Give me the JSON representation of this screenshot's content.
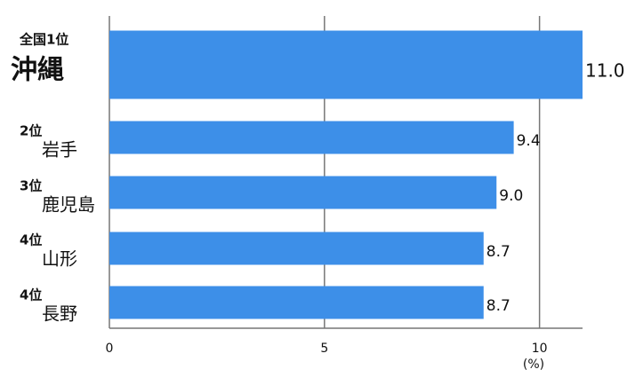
{
  "chart_data": {
    "type": "bar",
    "orientation": "horizontal",
    "ranks": [
      "全国1位",
      "2位",
      "3位",
      "4位",
      "4位"
    ],
    "categories": [
      "沖縄",
      "岩手",
      "鹿児島",
      "山形",
      "長野"
    ],
    "values": [
      11.0,
      9.4,
      9.0,
      8.7,
      8.7
    ],
    "value_labels": [
      "11.0",
      "9.4",
      "9.0",
      "8.7",
      "8.7"
    ],
    "color": "#3d8fe8",
    "rank_color": "#f07a1a",
    "xlim": [
      0,
      11
    ],
    "xticks": [
      0,
      5,
      10
    ],
    "x_unit": "(%)",
    "grid": true
  }
}
